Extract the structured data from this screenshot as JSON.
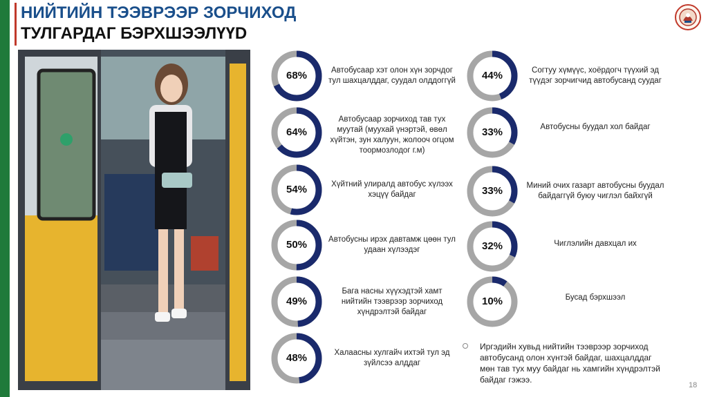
{
  "slide": {
    "title_line1": "НИЙТИЙН ТЭЭВРЭЭР ЗОРЧИХОД",
    "title_line2": "ТУЛГАРДАГ БЭРХШЭЭЛҮҮD",
    "page_number": "18",
    "note": "Иргэдийн хувьд нийтийн тээврээр зорчиход автобусанд олон хүнтэй байдаг, шахцалддаг мөн тав тух муу байдаг нь хамгийн хүндрэлтэй байдаг гэжээ."
  },
  "colors": {
    "accent": "#1a2a6c",
    "track": "#a6a6a6",
    "green_bar": "#1f7a3a",
    "red_rule": "#c0392b"
  },
  "stats": [
    {
      "value": 68,
      "label": "68%",
      "text": "Автобусаар хэт олон хүн зорчдог тул шахцалддаг, суудал олддоггүй"
    },
    {
      "value": 64,
      "label": "64%",
      "text": "Автобусаар зорчиход тав тух муутай (муухай үнэртэй, өвөл хүйтэн, зун халуун, жолооч огцом тоормозлодог г.м)"
    },
    {
      "value": 54,
      "label": "54%",
      "text": "Хүйтний улиралд автобус хүлээх хэцүү байдаг"
    },
    {
      "value": 50,
      "label": "50%",
      "text": "Автобусны ирэх давтамж цөөн тул удаан хүлээдэг"
    },
    {
      "value": 49,
      "label": "49%",
      "text": "Бага насны хүүхэдтэй хамт нийтийн тээврээр зорчиход хүндрэлтэй байдаг"
    },
    {
      "value": 48,
      "label": "48%",
      "text": "Халаасны хулгайч ихтэй тул эд зүйлсээ алддаг"
    },
    {
      "value": 44,
      "label": "44%",
      "text": "Согтуу хүмүүс, хоёрдогч түүхий эд түүдэг зорчигчид автобусанд суудаг"
    },
    {
      "value": 33,
      "label": "33%",
      "text": "Автобусны буудал хол байдаг"
    },
    {
      "value": 33,
      "label": "33%",
      "text": "Миний очих газарт автобусны буудал байдаггүй буюу чиглэл байхгүй"
    },
    {
      "value": 32,
      "label": "32%",
      "text": "Чиглэлийн давхцал их"
    },
    {
      "value": 10,
      "label": "10%",
      "text": "Бусад бэрхшээл"
    }
  ]
}
